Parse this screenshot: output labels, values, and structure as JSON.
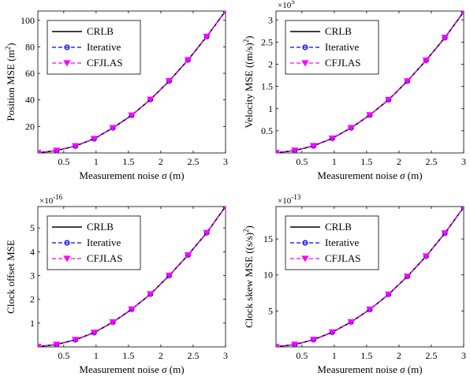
{
  "colors": {
    "CRLB": "#000000",
    "Iterative": "#0000ff",
    "CFJLAS": "#ff00ff"
  },
  "chart_data": [
    {
      "type": "line",
      "xlabel": "Measurement noise",
      "xlabel_symbol": "σ",
      "xlabel_unit": "(m)",
      "ylabel": "Position MSE (m",
      "ylabel_sup": "2",
      "ylabel_end": ")",
      "exponent": "",
      "exponent_sup": "",
      "xlim": [
        0.1,
        3.0
      ],
      "ylim": [
        0,
        107
      ],
      "xticks": [
        0.5,
        1,
        1.5,
        2,
        2.5,
        3
      ],
      "xtick_labels": [
        "0.5",
        "1",
        "1.5",
        "2",
        "2.5",
        "3"
      ],
      "yticks": [
        20,
        40,
        60,
        80,
        100
      ],
      "ytick_labels": [
        "20",
        "40",
        "60",
        "80",
        "100"
      ],
      "legend_position": "top-left",
      "x": [
        0.1,
        0.39,
        0.68,
        0.97,
        1.26,
        1.55,
        1.84,
        2.13,
        2.42,
        2.71,
        3.0
      ],
      "series": [
        {
          "name": "CRLB",
          "style": "solid",
          "marker": "none",
          "values": [
            0.1,
            1.8,
            5.2,
            10.7,
            18.9,
            28.4,
            40.3,
            54.3,
            70.1,
            87.8,
            107
          ]
        },
        {
          "name": "Iterative",
          "style": "dashed",
          "marker": "circle",
          "values": [
            0.1,
            1.8,
            5.2,
            10.7,
            18.9,
            28.4,
            40.3,
            54.3,
            70.1,
            87.8,
            107
          ]
        },
        {
          "name": "CFJLAS",
          "style": "dashed",
          "marker": "triangle-down",
          "values": [
            0.1,
            1.8,
            5.2,
            10.7,
            18.9,
            28.4,
            40.3,
            54.3,
            70.1,
            87.8,
            107
          ]
        }
      ]
    },
    {
      "type": "line",
      "xlabel": "Measurement noise",
      "xlabel_symbol": "σ",
      "xlabel_unit": "(m)",
      "ylabel": "Velocity MSE ((m/s)",
      "ylabel_sup": "2",
      "ylabel_end": ")",
      "exponent": "×10",
      "exponent_sup": "5",
      "xlim": [
        0.1,
        3.0
      ],
      "ylim": [
        0,
        3.2
      ],
      "xticks": [
        0.5,
        1,
        1.5,
        2,
        2.5,
        3
      ],
      "xtick_labels": [
        "0.5",
        "1",
        "1.5",
        "2",
        "2.5",
        "3"
      ],
      "yticks": [
        0.5,
        1,
        1.5,
        2,
        2.5,
        3
      ],
      "ytick_labels": [
        "0.5",
        "1",
        "1.5",
        "2",
        "2.5",
        "3"
      ],
      "legend_position": "top-left",
      "x": [
        0.1,
        0.39,
        0.68,
        0.97,
        1.26,
        1.55,
        1.84,
        2.13,
        2.42,
        2.71,
        3.0
      ],
      "series": [
        {
          "name": "CRLB",
          "style": "solid",
          "marker": "none",
          "values": [
            0.004,
            0.055,
            0.16,
            0.33,
            0.565,
            0.855,
            1.2,
            1.62,
            2.09,
            2.6,
            3.18
          ]
        },
        {
          "name": "Iterative",
          "style": "dashed",
          "marker": "circle",
          "values": [
            0.004,
            0.055,
            0.16,
            0.33,
            0.565,
            0.855,
            1.2,
            1.62,
            2.09,
            2.6,
            3.18
          ]
        },
        {
          "name": "CFJLAS",
          "style": "dashed",
          "marker": "triangle-down",
          "values": [
            0.004,
            0.055,
            0.16,
            0.33,
            0.565,
            0.855,
            1.2,
            1.62,
            2.09,
            2.6,
            3.18
          ]
        }
      ]
    },
    {
      "type": "line",
      "xlabel": "Measurement noise",
      "xlabel_symbol": "σ",
      "xlabel_unit": "(m)",
      "ylabel": "Clock offset MSE",
      "ylabel_sup": "",
      "ylabel_end": "",
      "exponent": "×10",
      "exponent_sup": "-16",
      "xlim": [
        0.1,
        3.0
      ],
      "ylim": [
        0,
        5.9
      ],
      "xticks": [
        0.5,
        1,
        1.5,
        2,
        2.5,
        3
      ],
      "xtick_labels": [
        "0.5",
        "1",
        "1.5",
        "2",
        "2.5",
        "3"
      ],
      "yticks": [
        1,
        2,
        3,
        4,
        5
      ],
      "ytick_labels": [
        "1",
        "2",
        "3",
        "4",
        "5"
      ],
      "legend_position": "top-left",
      "x": [
        0.1,
        0.39,
        0.68,
        0.97,
        1.26,
        1.55,
        1.84,
        2.13,
        2.42,
        2.71,
        3.0
      ],
      "series": [
        {
          "name": "CRLB",
          "style": "solid",
          "marker": "none",
          "values": [
            0.01,
            0.1,
            0.3,
            0.6,
            1.04,
            1.58,
            2.22,
            3.0,
            3.86,
            4.8,
            5.9
          ]
        },
        {
          "name": "Iterative",
          "style": "dashed",
          "marker": "circle",
          "values": [
            0.01,
            0.1,
            0.3,
            0.6,
            1.04,
            1.58,
            2.22,
            3.0,
            3.86,
            4.8,
            5.9
          ]
        },
        {
          "name": "CFJLAS",
          "style": "dashed",
          "marker": "triangle-down",
          "values": [
            0.01,
            0.1,
            0.3,
            0.6,
            1.04,
            1.58,
            2.22,
            3.0,
            3.86,
            4.8,
            5.9
          ]
        }
      ]
    },
    {
      "type": "line",
      "xlabel": "Measurement noise",
      "xlabel_symbol": "σ",
      "xlabel_unit": "(m)",
      "ylabel": "Clock skew MSE ((s/s)",
      "ylabel_sup": "2",
      "ylabel_end": ")",
      "exponent": "×10",
      "exponent_sup": "-13",
      "xlim": [
        0.1,
        3.0
      ],
      "ylim": [
        0,
        19.5
      ],
      "xticks": [
        0.5,
        1,
        1.5,
        2,
        2.5,
        3
      ],
      "xtick_labels": [
        "0.5",
        "1",
        "1.5",
        "2",
        "2.5",
        "3"
      ],
      "yticks": [
        5,
        10,
        15
      ],
      "ytick_labels": [
        "5",
        "10",
        "15"
      ],
      "legend_position": "top-left",
      "x": [
        0.1,
        0.39,
        0.68,
        0.97,
        1.26,
        1.55,
        1.84,
        2.13,
        2.42,
        2.71,
        3.0
      ],
      "series": [
        {
          "name": "CRLB",
          "style": "solid",
          "marker": "none",
          "values": [
            0.02,
            0.33,
            1.0,
            2.04,
            3.46,
            5.2,
            7.3,
            9.8,
            12.6,
            15.8,
            19.4
          ]
        },
        {
          "name": "Iterative",
          "style": "dashed",
          "marker": "circle",
          "values": [
            0.02,
            0.33,
            1.0,
            2.04,
            3.46,
            5.2,
            7.3,
            9.8,
            12.6,
            15.8,
            19.4
          ]
        },
        {
          "name": "CFJLAS",
          "style": "dashed",
          "marker": "triangle-down",
          "values": [
            0.02,
            0.33,
            1.0,
            2.04,
            3.46,
            5.2,
            7.3,
            9.8,
            12.6,
            15.8,
            19.4
          ]
        }
      ]
    }
  ]
}
